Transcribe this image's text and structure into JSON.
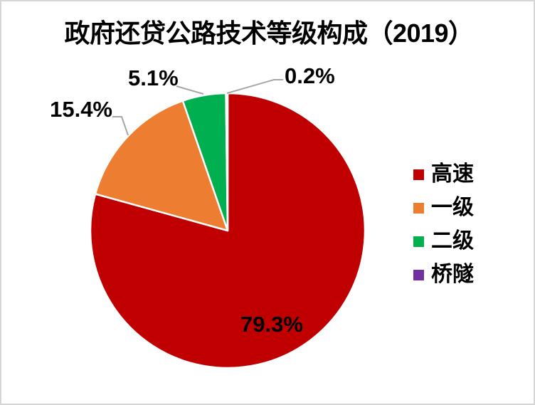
{
  "title": "政府还贷公路技术等级构成（2019）",
  "chart_data": {
    "type": "pie",
    "title": "政府还贷公路技术等级构成（2019）",
    "categories": [
      "高速",
      "一级",
      "二级",
      "桥隧"
    ],
    "values": [
      79.3,
      15.4,
      5.1,
      0.2
    ],
    "labels": [
      "79.3%",
      "15.4%",
      "5.1%",
      "0.2%"
    ],
    "colors": [
      "#c00000",
      "#ed7d31",
      "#00b050",
      "#7030a0"
    ],
    "start_angle_deg": 0,
    "direction": "clockwise",
    "slice_border_color": "#ffffff",
    "leader_line_color": "#a6a6a6",
    "legend_position": "right"
  },
  "legend": {
    "items": [
      {
        "label": "高速",
        "color": "#c00000"
      },
      {
        "label": "一级",
        "color": "#ed7d31"
      },
      {
        "label": "二级",
        "color": "#00b050"
      },
      {
        "label": "桥隧",
        "color": "#7030a0"
      }
    ]
  }
}
